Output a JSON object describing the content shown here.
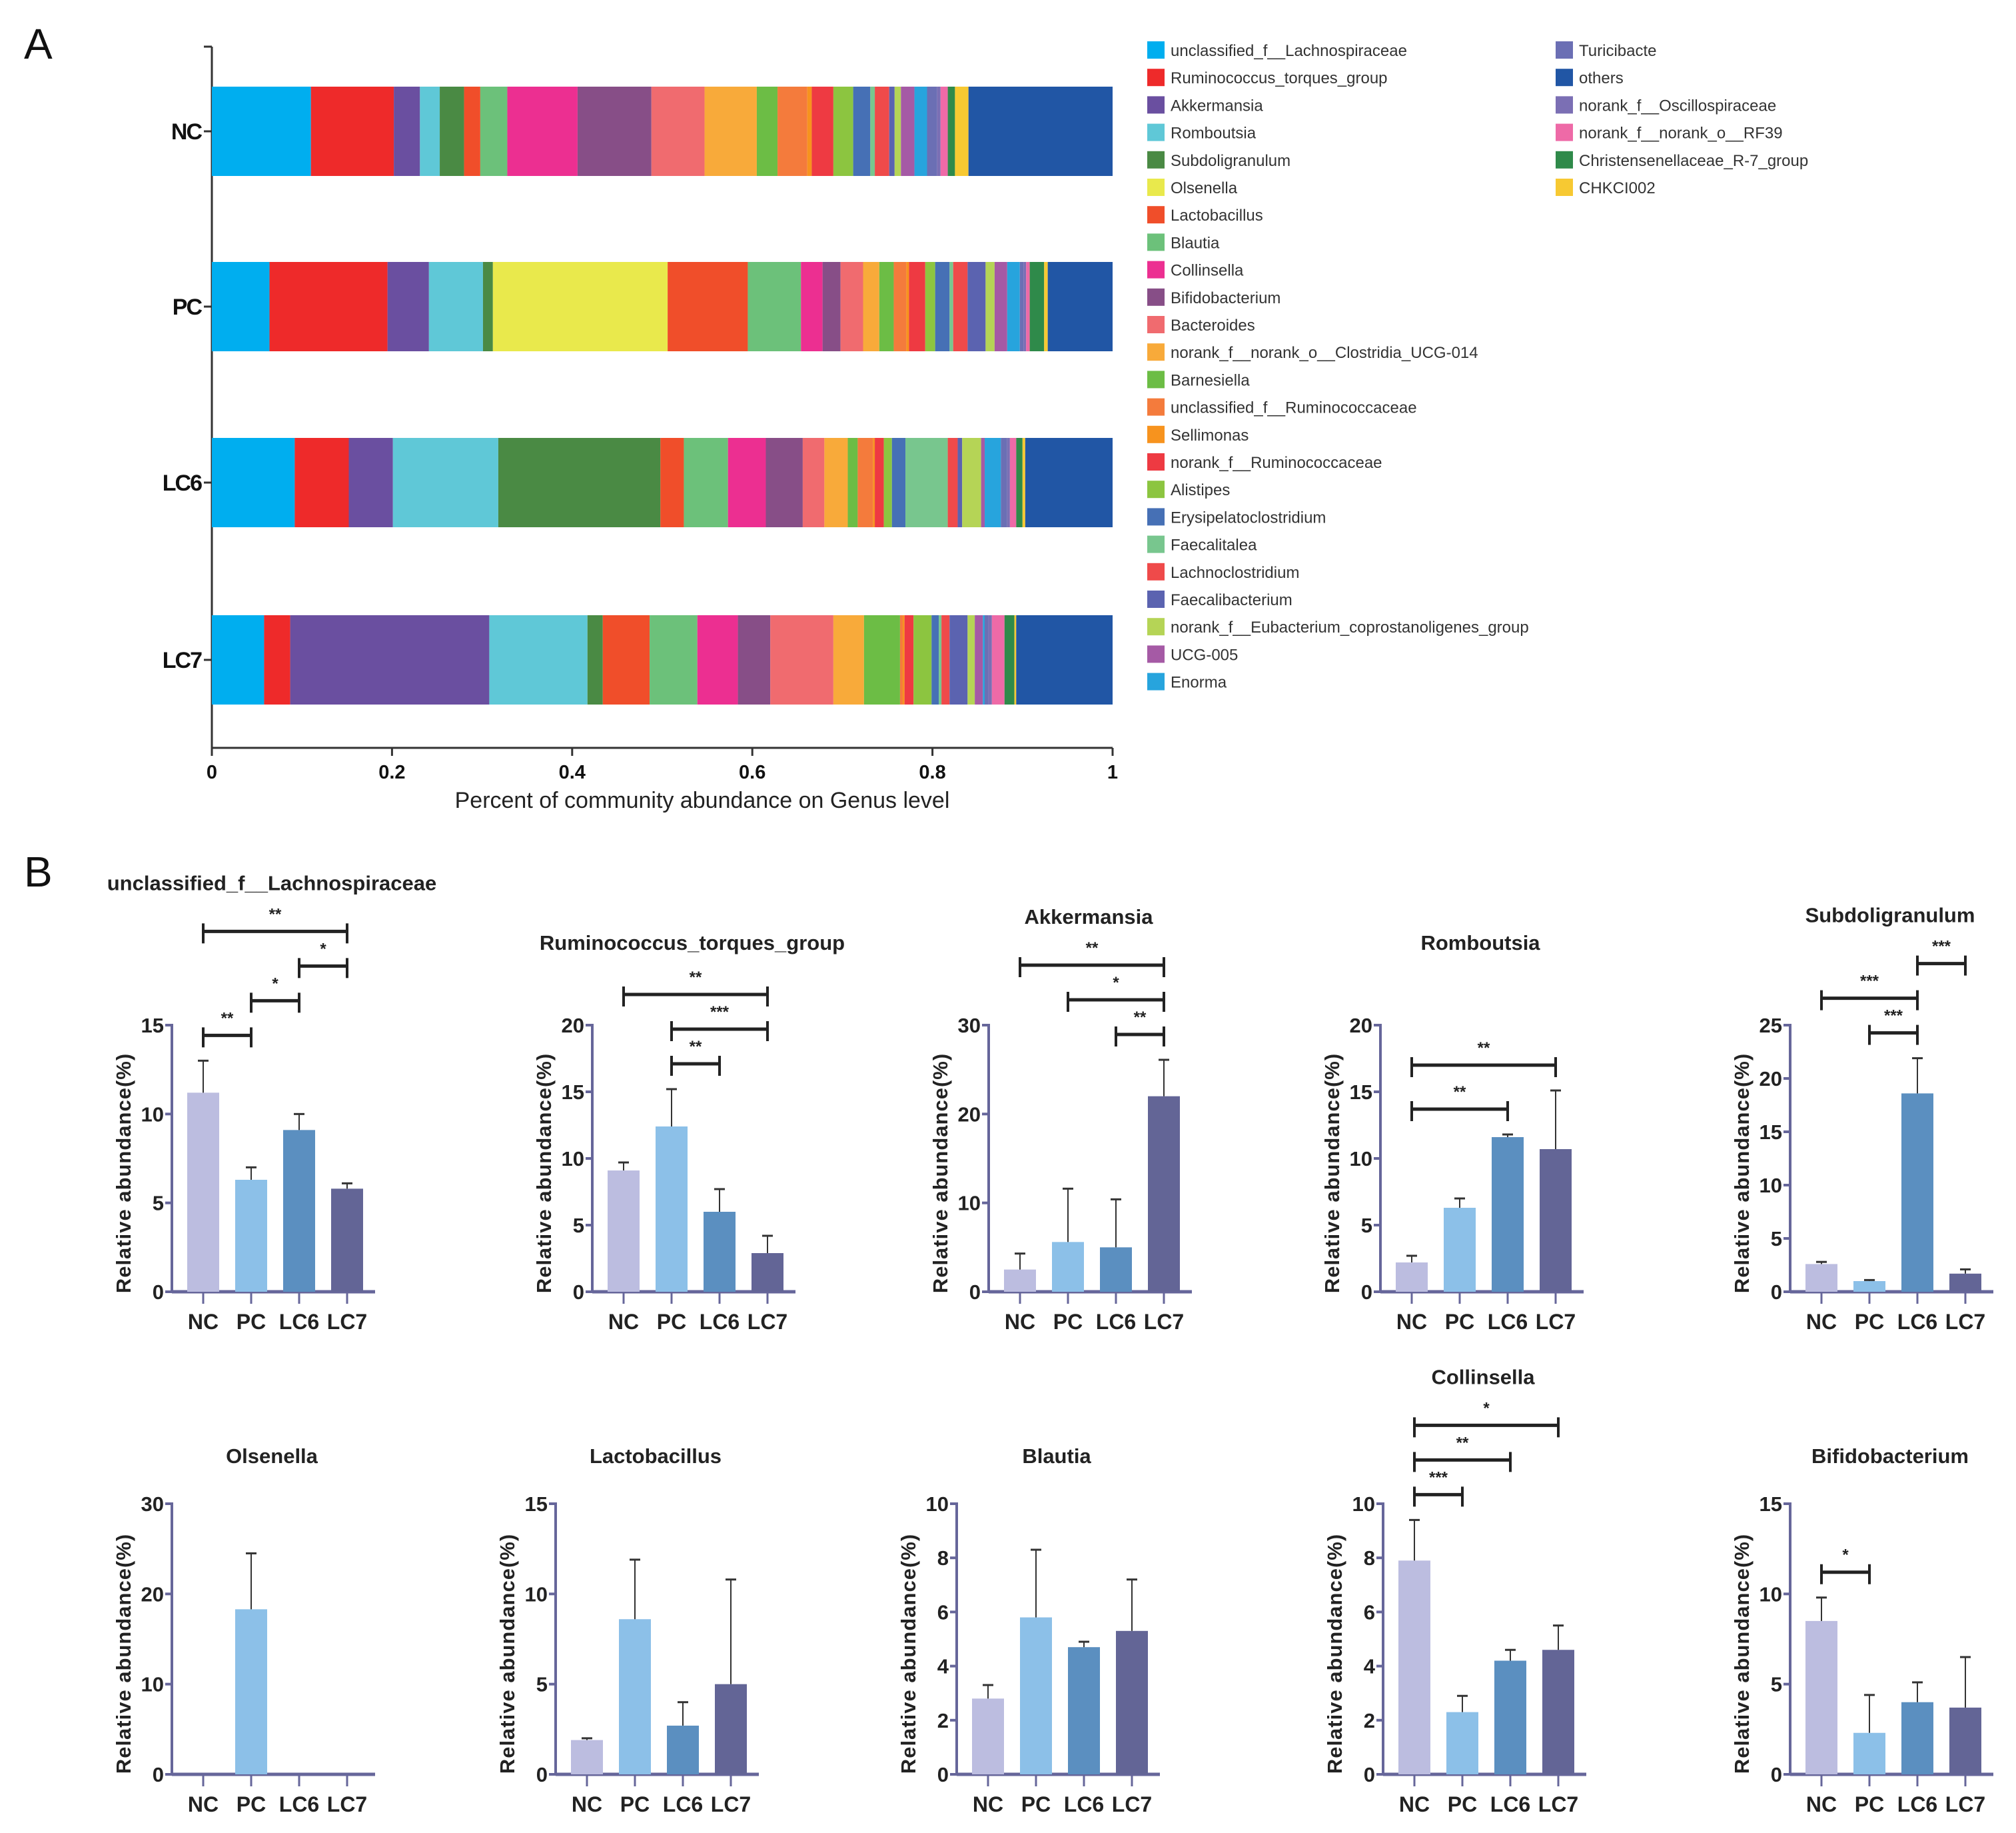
{
  "panels": {
    "a_label": "A",
    "b_label": "B"
  },
  "chart_data": [
    {
      "type": "bar",
      "orientation": "horizontal-stacked",
      "categories": [
        "NC",
        "PC",
        "LC6",
        "LC7"
      ],
      "xlabel": "Percent of community abundance on Genus level",
      "xlim": [
        0,
        1
      ],
      "xticks": [
        0,
        0.2,
        0.4,
        0.6,
        0.8,
        1
      ],
      "xtick_labels": [
        "0",
        "0.2",
        "0.4",
        "0.6",
        "0.8",
        "1"
      ],
      "legend_placement": "right",
      "series": [
        {
          "name": "unclassified_f__Lachnospiraceae",
          "color": "#00aeef",
          "values": [
            0.11,
            0.064,
            0.092,
            0.058
          ]
        },
        {
          "name": "Ruminococcus_torques_group",
          "color": "#ee2a2a",
          "values": [
            0.092,
            0.131,
            0.06,
            0.029
          ]
        },
        {
          "name": "Akkermansia",
          "color": "#6a4fa0",
          "values": [
            0.029,
            0.046,
            0.049,
            0.221
          ]
        },
        {
          "name": "Romboutsia",
          "color": "#5fc8d7",
          "values": [
            0.022,
            0.06,
            0.117,
            0.109
          ]
        },
        {
          "name": "Subdoligranulum",
          "color": "#4a8a44",
          "values": [
            0.027,
            0.011,
            0.18,
            0.017
          ]
        },
        {
          "name": "Olsenella",
          "color": "#e9e94c",
          "values": [
            0,
            0.194,
            0,
            0
          ]
        },
        {
          "name": "Lactobacillus",
          "color": "#f04e2a",
          "values": [
            0.018,
            0.089,
            0.026,
            0.052
          ]
        },
        {
          "name": "Blautia",
          "color": "#6cc17a",
          "values": [
            0.03,
            0.059,
            0.049,
            0.053
          ]
        },
        {
          "name": "Collinsella",
          "color": "#ec2f91",
          "values": [
            0.078,
            0.024,
            0.042,
            0.045
          ]
        },
        {
          "name": "Bifidobacterium",
          "color": "#874e87",
          "values": [
            0.082,
            0.02,
            0.041,
            0.036
          ]
        },
        {
          "name": "Bacteroides",
          "color": "#f06b6f",
          "values": [
            0.059,
            0.025,
            0.024,
            0.07
          ]
        },
        {
          "name": "norank_f__norank_o__Clostridia_UCG-014",
          "color": "#f8aa3a",
          "values": [
            0.058,
            0.018,
            0.026,
            0.034
          ]
        },
        {
          "name": "Barnesiella",
          "color": "#6cbd45",
          "values": [
            0.023,
            0.016,
            0.011,
            0.04
          ]
        },
        {
          "name": "unclassified_f__Ruminococcaceae",
          "color": "#f47b3c",
          "values": [
            0.033,
            0.014,
            0.017,
            0.003
          ]
        },
        {
          "name": "Sellimonas",
          "color": "#f7931e",
          "values": [
            0.005,
            0.003,
            0.002,
            0.002
          ]
        },
        {
          "name": "norank_f__Ruminococcaceae",
          "color": "#ee3a42",
          "values": [
            0.024,
            0.018,
            0.01,
            0.01
          ]
        },
        {
          "name": "Alistipes",
          "color": "#8cc540",
          "values": [
            0.022,
            0.011,
            0.009,
            0.02
          ]
        },
        {
          "name": "Erysipelatoclostridium",
          "color": "#4670b5",
          "values": [
            0.019,
            0.016,
            0.015,
            0.008
          ]
        },
        {
          "name": "Faecalitalea",
          "color": "#78c68e",
          "values": [
            0.005,
            0.004,
            0.047,
            0.003
          ]
        },
        {
          "name": "Lachnoclostridium",
          "color": "#ef4a4a",
          "values": [
            0.016,
            0.016,
            0.011,
            0.009
          ]
        },
        {
          "name": "Faecalibacterium",
          "color": "#5b63b0",
          "values": [
            0.006,
            0.02,
            0.005,
            0.02
          ]
        },
        {
          "name": "norank_f__Eubacterium_coprostanoligenes_group",
          "color": "#b5d456",
          "values": [
            0.007,
            0.01,
            0.021,
            0.008
          ]
        },
        {
          "name": "UCG-005",
          "color": "#a55aa5",
          "values": [
            0.015,
            0.014,
            0.004,
            0.009
          ]
        },
        {
          "name": "Enorma",
          "color": "#27a4dd",
          "values": [
            0.014,
            0.014,
            0.018,
            0.002
          ]
        },
        {
          "name": "Turicibacte",
          "color": "#6b6fb4",
          "values": [
            0.011,
            0.004,
            0.007,
            0.004
          ]
        },
        {
          "name": "others",
          "color": "#2156a5",
          "values": [
            0.16,
            0.072,
            0.097,
            0.107
          ]
        },
        {
          "name": "norank_f__Oscillospiraceae",
          "color": "#7b6fb4",
          "values": [
            0.004,
            0.003,
            0.003,
            0.004
          ]
        },
        {
          "name": "norank_f__norank_o__RF39",
          "color": "#ee6aa7",
          "values": [
            0.008,
            0.004,
            0.007,
            0.014
          ]
        },
        {
          "name": "Christensenellaceae_R-7_group",
          "color": "#2f8a4a",
          "values": [
            0.008,
            0.016,
            0.007,
            0.011
          ]
        },
        {
          "name": "CHKCI002",
          "color": "#f7c932",
          "values": [
            0.015,
            0.004,
            0.003,
            0.002
          ]
        }
      ]
    },
    {
      "type": "bar",
      "title": "unclassified_f__Lachnospiraceae",
      "ylabel": "Relative abundance(%)",
      "categories": [
        "NC",
        "PC",
        "LC6",
        "LC7"
      ],
      "values": [
        11.2,
        6.3,
        9.1,
        5.8
      ],
      "errors": [
        1.8,
        0.7,
        0.9,
        0.3
      ],
      "ylim": [
        0,
        15
      ],
      "yticks": [
        0,
        5,
        10,
        15
      ],
      "significance": [
        {
          "from": "NC",
          "to": "PC",
          "label": "**"
        },
        {
          "from": "PC",
          "to": "LC6",
          "label": "*"
        },
        {
          "from": "LC6",
          "to": "LC7",
          "label": "*"
        },
        {
          "from": "NC",
          "to": "LC7",
          "label": "**"
        }
      ]
    },
    {
      "type": "bar",
      "title": "Ruminococcus_torques_group",
      "ylabel": "Relative abundance(%)",
      "categories": [
        "NC",
        "PC",
        "LC6",
        "LC7"
      ],
      "values": [
        9.1,
        12.4,
        6.0,
        2.9
      ],
      "errors": [
        0.6,
        2.8,
        1.7,
        1.3
      ],
      "ylim": [
        0,
        20
      ],
      "yticks": [
        0,
        5,
        10,
        15,
        20
      ],
      "significance": [
        {
          "from": "PC",
          "to": "LC6",
          "label": "**"
        },
        {
          "from": "PC",
          "to": "LC7",
          "label": "***"
        },
        {
          "from": "NC",
          "to": "LC7",
          "label": "**"
        }
      ]
    },
    {
      "type": "bar",
      "title": "Akkermansia",
      "ylabel": "Relative abundance(%)",
      "categories": [
        "NC",
        "PC",
        "LC6",
        "LC7"
      ],
      "values": [
        2.5,
        5.6,
        5.0,
        22.0
      ],
      "errors": [
        1.8,
        6.0,
        5.4,
        4.1
      ],
      "ylim": [
        0,
        30
      ],
      "yticks": [
        0,
        10,
        20,
        30
      ],
      "significance": [
        {
          "from": "LC6",
          "to": "LC7",
          "label": "**"
        },
        {
          "from": "PC",
          "to": "LC7",
          "label": "*"
        },
        {
          "from": "NC",
          "to": "LC7",
          "label": "**"
        }
      ]
    },
    {
      "type": "bar",
      "title": "Romboutsia",
      "ylabel": "Relative abundance(%)",
      "categories": [
        "NC",
        "PC",
        "LC6",
        "LC7"
      ],
      "values": [
        2.2,
        6.3,
        11.6,
        10.7
      ],
      "errors": [
        0.5,
        0.7,
        0.2,
        4.4
      ],
      "ylim": [
        0,
        20
      ],
      "yticks": [
        0,
        5,
        10,
        15,
        20
      ],
      "significance": [
        {
          "from": "NC",
          "to": "LC6",
          "label": "**"
        },
        {
          "from": "NC",
          "to": "LC7",
          "label": "**"
        }
      ]
    },
    {
      "type": "bar",
      "title": "Subdoligranulum",
      "ylabel": "Relative abundance(%)",
      "categories": [
        "NC",
        "PC",
        "LC6",
        "LC7"
      ],
      "values": [
        2.6,
        1.0,
        18.6,
        1.7
      ],
      "errors": [
        0.2,
        0.1,
        3.3,
        0.4
      ],
      "ylim": [
        0,
        25
      ],
      "yticks": [
        0,
        5,
        10,
        15,
        20,
        25
      ],
      "significance": [
        {
          "from": "PC",
          "to": "LC6",
          "label": "***"
        },
        {
          "from": "NC",
          "to": "LC6",
          "label": "***"
        },
        {
          "from": "LC6",
          "to": "LC7",
          "label": "***"
        }
      ]
    },
    {
      "type": "bar",
      "title": "Olsenella",
      "ylabel": "Relative abundance(%)",
      "categories": [
        "NC",
        "PC",
        "LC6",
        "LC7"
      ],
      "values": [
        0,
        18.3,
        0,
        0
      ],
      "errors": [
        0,
        6.2,
        0,
        0
      ],
      "ylim": [
        0,
        30
      ],
      "yticks": [
        0,
        10,
        20,
        30
      ],
      "significance": []
    },
    {
      "type": "bar",
      "title": "Lactobacillus",
      "ylabel": "Relative abundance(%)",
      "categories": [
        "NC",
        "PC",
        "LC6",
        "LC7"
      ],
      "values": [
        1.9,
        8.6,
        2.7,
        5.0
      ],
      "errors": [
        0.1,
        3.3,
        1.3,
        5.8
      ],
      "ylim": [
        0,
        15
      ],
      "yticks": [
        0,
        5,
        10,
        15
      ],
      "significance": []
    },
    {
      "type": "bar",
      "title": "Blautia",
      "ylabel": "Relative abundance(%)",
      "categories": [
        "NC",
        "PC",
        "LC6",
        "LC7"
      ],
      "values": [
        2.8,
        5.8,
        4.7,
        5.3
      ],
      "errors": [
        0.5,
        2.5,
        0.2,
        1.9
      ],
      "ylim": [
        0,
        10
      ],
      "yticks": [
        0,
        2,
        4,
        6,
        8,
        10
      ],
      "significance": []
    },
    {
      "type": "bar",
      "title": "Collinsella",
      "ylabel": "Relative abundance(%)",
      "categories": [
        "NC",
        "PC",
        "LC6",
        "LC7"
      ],
      "values": [
        7.9,
        2.3,
        4.2,
        4.6
      ],
      "errors": [
        1.5,
        0.6,
        0.4,
        0.9
      ],
      "ylim": [
        0,
        10
      ],
      "yticks": [
        0,
        2,
        4,
        6,
        8,
        10
      ],
      "significance": [
        {
          "from": "NC",
          "to": "PC",
          "label": "***"
        },
        {
          "from": "NC",
          "to": "LC6",
          "label": "**"
        },
        {
          "from": "NC",
          "to": "LC7",
          "label": "*"
        }
      ]
    },
    {
      "type": "bar",
      "title": "Bifidobacterium",
      "ylabel": "Relative abundance(%)",
      "categories": [
        "NC",
        "PC",
        "LC6",
        "LC7"
      ],
      "values": [
        8.5,
        2.3,
        4.0,
        3.7
      ],
      "errors": [
        1.3,
        2.1,
        1.1,
        2.8
      ],
      "ylim": [
        0,
        15
      ],
      "yticks": [
        0,
        5,
        10,
        15
      ],
      "significance": [
        {
          "from": "NC",
          "to": "PC",
          "label": "*"
        }
      ]
    }
  ],
  "group_colors": {
    "NC": "#bcbde0",
    "PC": "#8cc0e8",
    "LC6": "#5b8fc0",
    "LC7": "#636596"
  }
}
